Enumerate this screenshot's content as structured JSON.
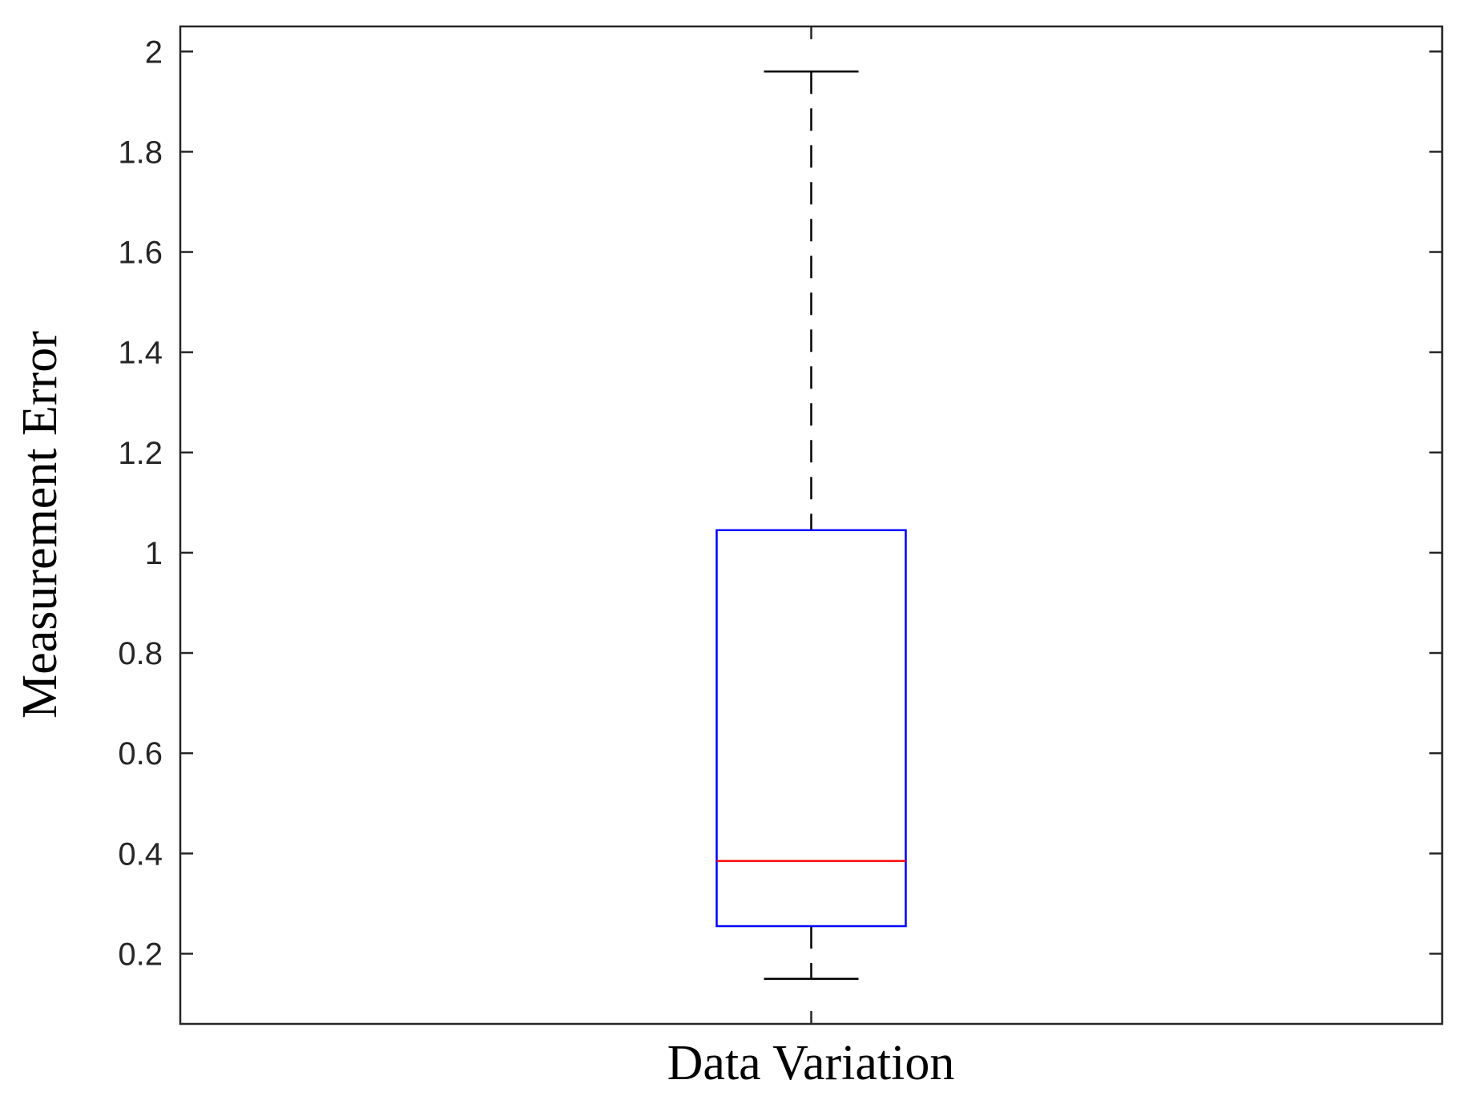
{
  "chart_data": {
    "type": "box",
    "title": "",
    "xlabel": "Data Variation",
    "ylabel": "Measurement Error",
    "ylim": [
      0.06,
      2.05
    ],
    "yticks": [
      0.2,
      0.4,
      0.6,
      0.8,
      1,
      1.2,
      1.4,
      1.6,
      1.8,
      2
    ],
    "ytick_labels": [
      "0.2",
      "0.4",
      "0.6",
      "0.8",
      "1",
      "1.2",
      "1.4",
      "1.6",
      "1.8",
      "2"
    ],
    "xtick_labels": [],
    "grid": false,
    "boxes": [
      {
        "min": 0.15,
        "q1": 0.255,
        "median": 0.385,
        "q3": 1.045,
        "max": 1.96
      }
    ],
    "colors": {
      "box": "#0000ff",
      "median": "#ff0000",
      "whisker": "#000000",
      "axis": "#262626"
    }
  }
}
